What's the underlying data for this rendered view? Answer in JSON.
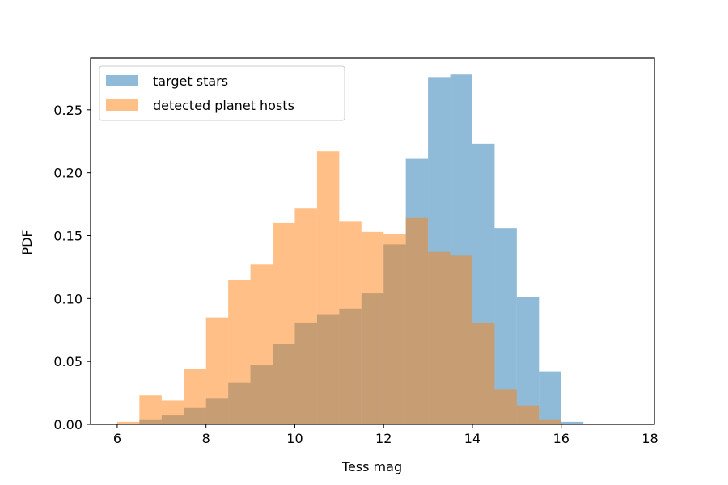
{
  "chart_data": {
    "type": "bar",
    "xlabel": "Tess mag",
    "ylabel": "PDF",
    "xlim": [
      5.4,
      18.1
    ],
    "ylim": [
      0,
      0.291
    ],
    "xticks": [
      6,
      8,
      10,
      12,
      14,
      16,
      18
    ],
    "yticks": [
      0.0,
      0.05,
      0.1,
      0.15,
      0.2,
      0.25
    ],
    "ytick_labels": [
      "0.00",
      "0.05",
      "0.10",
      "0.15",
      "0.20",
      "0.25"
    ],
    "bin_edges": [
      6.0,
      6.5,
      7.0,
      7.5,
      8.0,
      8.5,
      9.0,
      9.5,
      10.0,
      10.5,
      11.0,
      11.5,
      12.0,
      12.5,
      13.0,
      13.5,
      14.0,
      14.5,
      15.0,
      15.5,
      16.0,
      16.5,
      17.0,
      17.5
    ],
    "series": [
      {
        "name": "target stars",
        "color": "#1f77b4",
        "opacity": 0.5,
        "values": [
          0.0005,
          0.004,
          0.007,
          0.013,
          0.021,
          0.033,
          0.047,
          0.064,
          0.081,
          0.087,
          0.092,
          0.104,
          0.143,
          0.211,
          0.276,
          0.278,
          0.223,
          0.156,
          0.101,
          0.042,
          0.002,
          0.0,
          0.0
        ]
      },
      {
        "name": "detected planet hosts",
        "color": "#ff7f0e",
        "opacity": 0.5,
        "values": [
          0.002,
          0.023,
          0.019,
          0.044,
          0.085,
          0.115,
          0.127,
          0.16,
          0.172,
          0.217,
          0.161,
          0.153,
          0.151,
          0.164,
          0.137,
          0.134,
          0.081,
          0.028,
          0.015,
          0.004,
          0.0,
          0.0,
          0.0
        ]
      }
    ],
    "legend_position": "top-left",
    "grid": false
  }
}
